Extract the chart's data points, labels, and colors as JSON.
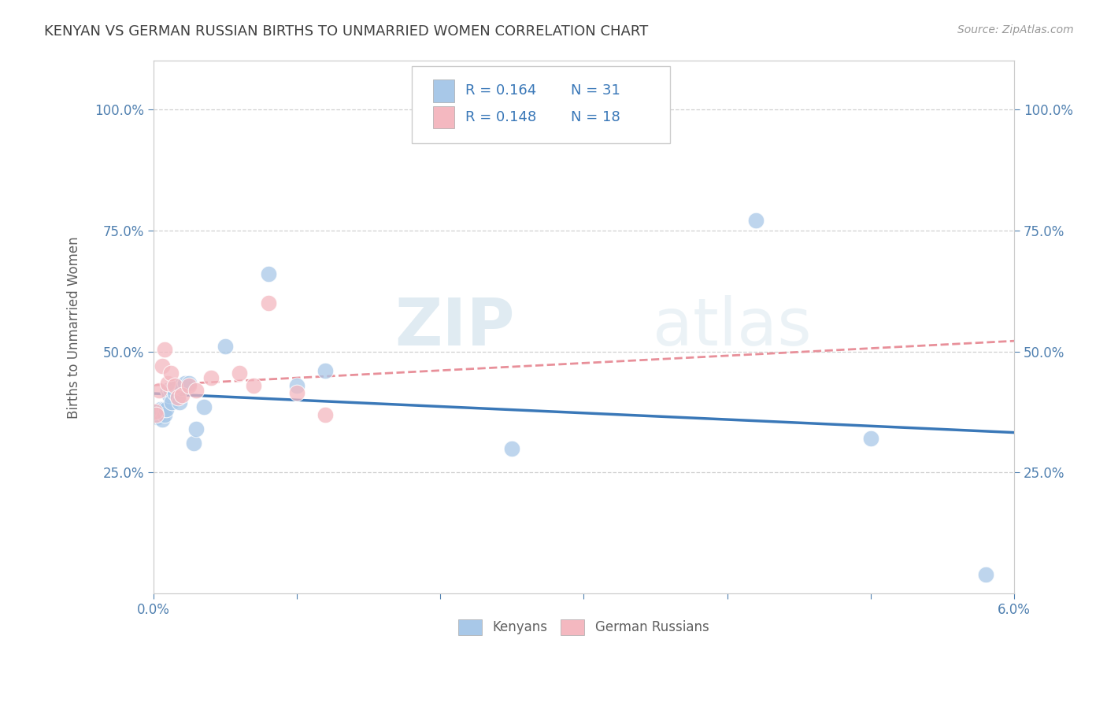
{
  "title": "KENYAN VS GERMAN RUSSIAN BIRTHS TO UNMARRIED WOMEN CORRELATION CHART",
  "source": "Source: ZipAtlas.com",
  "ylabel": "Births to Unmarried Women",
  "xlim": [
    0.0,
    0.06
  ],
  "ylim": [
    0.0,
    1.1
  ],
  "xticks": [
    0.0,
    0.01,
    0.02,
    0.03,
    0.04,
    0.05,
    0.06
  ],
  "xticklabels": [
    "0.0%",
    "",
    "",
    "",
    "",
    "",
    "6.0%"
  ],
  "yticks": [
    0.25,
    0.5,
    0.75,
    1.0
  ],
  "yticklabels": [
    "25.0%",
    "50.0%",
    "75.0%",
    "100.0%"
  ],
  "watermark_zip": "ZIP",
  "watermark_atlas": "atlas",
  "kenyan_color": "#a8c8e8",
  "german_russian_color": "#f4b8c0",
  "kenyan_line_color": "#3a78b8",
  "german_russian_line_color": "#e8909a",
  "r_kenyan": 0.164,
  "n_kenyan": 31,
  "r_german_russian": 0.148,
  "n_german_russian": 18,
  "kenyan_x": [
    0.0001,
    0.0002,
    0.0003,
    0.0004,
    0.0005,
    0.0006,
    0.0007,
    0.0008,
    0.0009,
    0.001,
    0.0011,
    0.0012,
    0.0013,
    0.0014,
    0.0015,
    0.0016,
    0.0018,
    0.002,
    0.0022,
    0.0025,
    0.0028,
    0.003,
    0.0035,
    0.005,
    0.008,
    0.01,
    0.012,
    0.025,
    0.042,
    0.05,
    0.058
  ],
  "kenyan_y": [
    0.375,
    0.37,
    0.365,
    0.375,
    0.38,
    0.36,
    0.38,
    0.37,
    0.38,
    0.42,
    0.41,
    0.42,
    0.395,
    0.425,
    0.415,
    0.43,
    0.395,
    0.425,
    0.435,
    0.435,
    0.31,
    0.34,
    0.385,
    0.51,
    0.66,
    0.43,
    0.46,
    0.3,
    0.77,
    0.32,
    0.04
  ],
  "german_russian_x": [
    0.0001,
    0.0002,
    0.0004,
    0.0006,
    0.0008,
    0.001,
    0.0012,
    0.0015,
    0.0017,
    0.002,
    0.0025,
    0.003,
    0.004,
    0.006,
    0.007,
    0.008,
    0.01,
    0.012
  ],
  "german_russian_y": [
    0.375,
    0.37,
    0.42,
    0.47,
    0.505,
    0.435,
    0.455,
    0.43,
    0.405,
    0.41,
    0.43,
    0.42,
    0.445,
    0.455,
    0.43,
    0.6,
    0.415,
    0.37
  ],
  "bg_color": "#ffffff",
  "grid_color": "#d0d0d0",
  "title_color": "#404040",
  "axis_label_color": "#606060",
  "tick_color": "#5080b0",
  "legend_r_color": "#3a78b8"
}
